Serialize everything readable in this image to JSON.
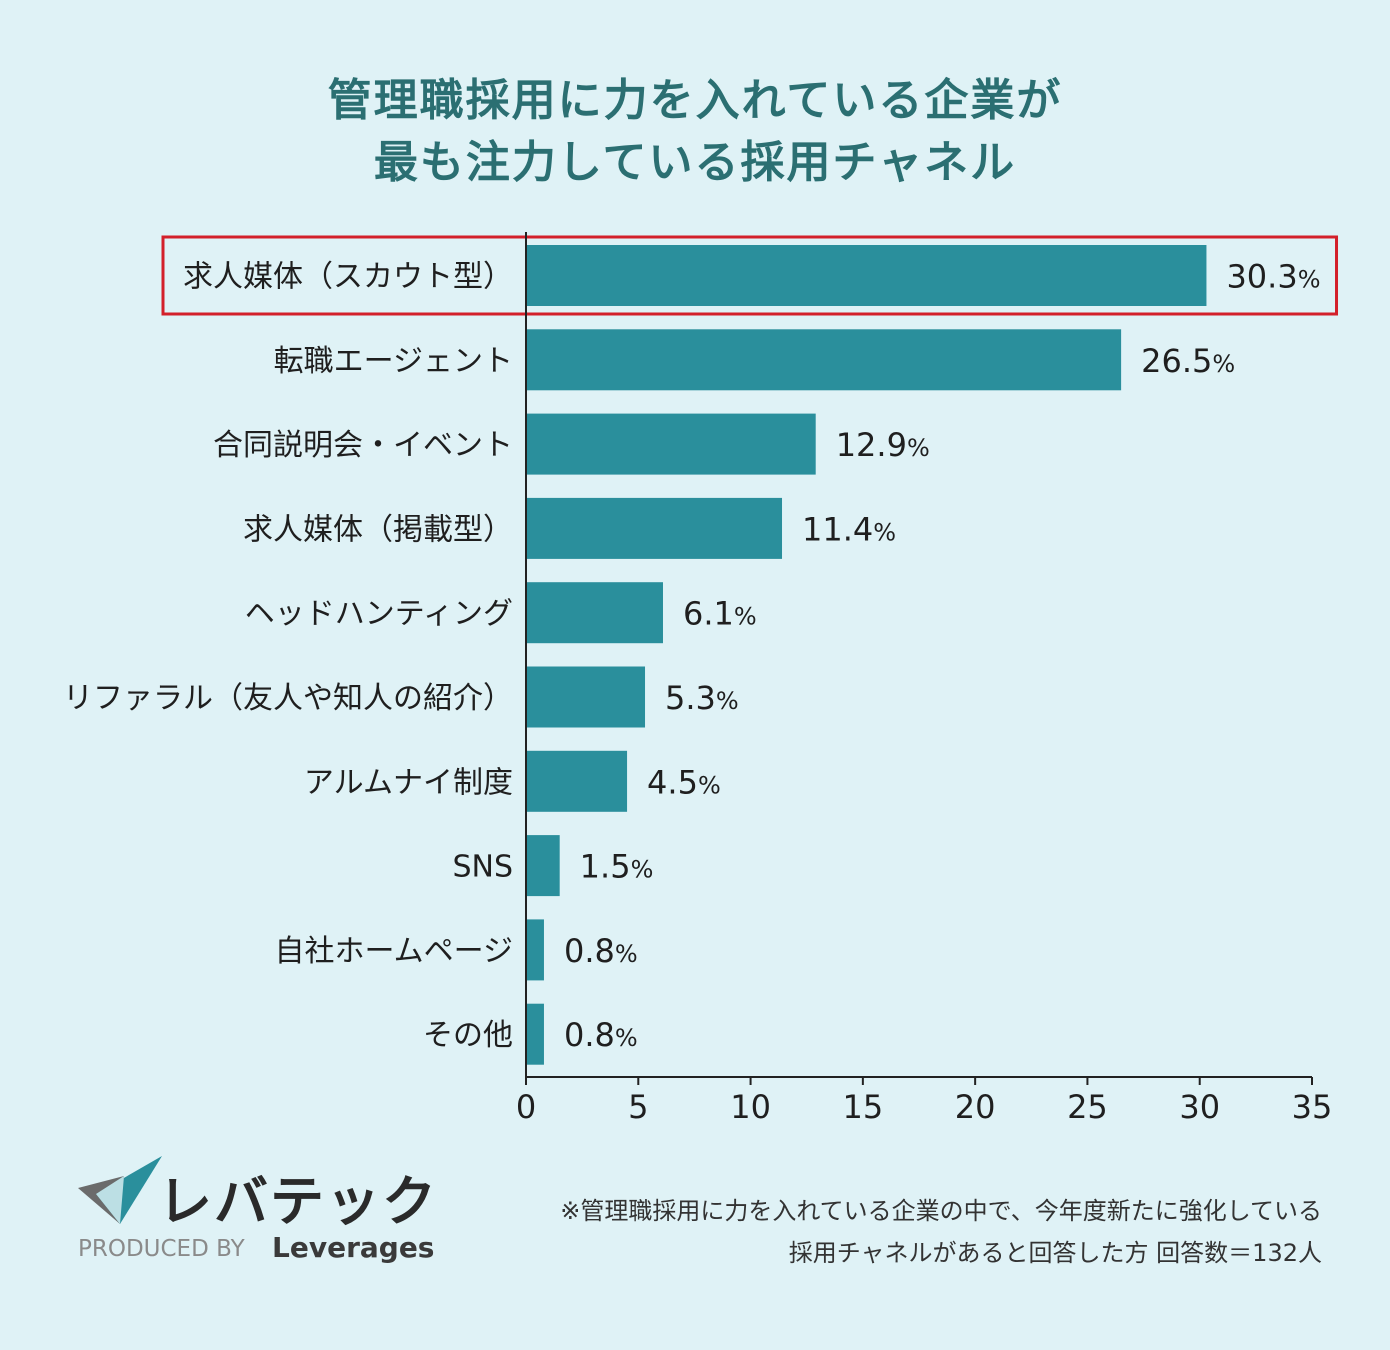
{
  "title": {
    "line1": "管理職採用に力を入れている企業が",
    "line2": "最も注力している採用チャネル"
  },
  "chart_data": {
    "type": "bar",
    "orientation": "horizontal",
    "title": "管理職採用に力を入れている企業が最も注力している採用チャネル",
    "categories": [
      "求人媒体（スカウト型）",
      "転職エージェント",
      "合同説明会・イベント",
      "求人媒体（掲載型）",
      "ヘッドハンティング",
      "リファラル（友人や知人の紹介）",
      "アルムナイ制度",
      "SNS",
      "自社ホームページ",
      "その他"
    ],
    "values": [
      30.3,
      26.5,
      12.9,
      11.4,
      6.1,
      5.3,
      4.5,
      1.5,
      0.8,
      0.8
    ],
    "value_labels": [
      "30.3",
      "26.5",
      "12.9",
      "11.4",
      "6.1",
      "5.3",
      "4.5",
      "1.5",
      "0.8",
      "0.8"
    ],
    "value_suffix": "%",
    "xlim": [
      0,
      35
    ],
    "xticks": [
      "0",
      "5",
      "10",
      "15",
      "20",
      "25",
      "30",
      "35"
    ],
    "highlighted_index": 0,
    "colors": {
      "bar": "#2a8f9c",
      "highlight_border": "#d3202a",
      "axis": "#222222"
    }
  },
  "logo": {
    "brand_name": "レバテック",
    "produced_by": "PRODUCED BY",
    "produced_brand": "Leverages",
    "colors": {
      "check_teal": "#2a8f9c",
      "check_gray": "#6b6b6b"
    }
  },
  "footnote": {
    "line1": "※管理職採用に力を入れている企業の中で、今年度新たに強化している",
    "line2": "採用チャネルがあると回答した方 回答数＝132人"
  }
}
